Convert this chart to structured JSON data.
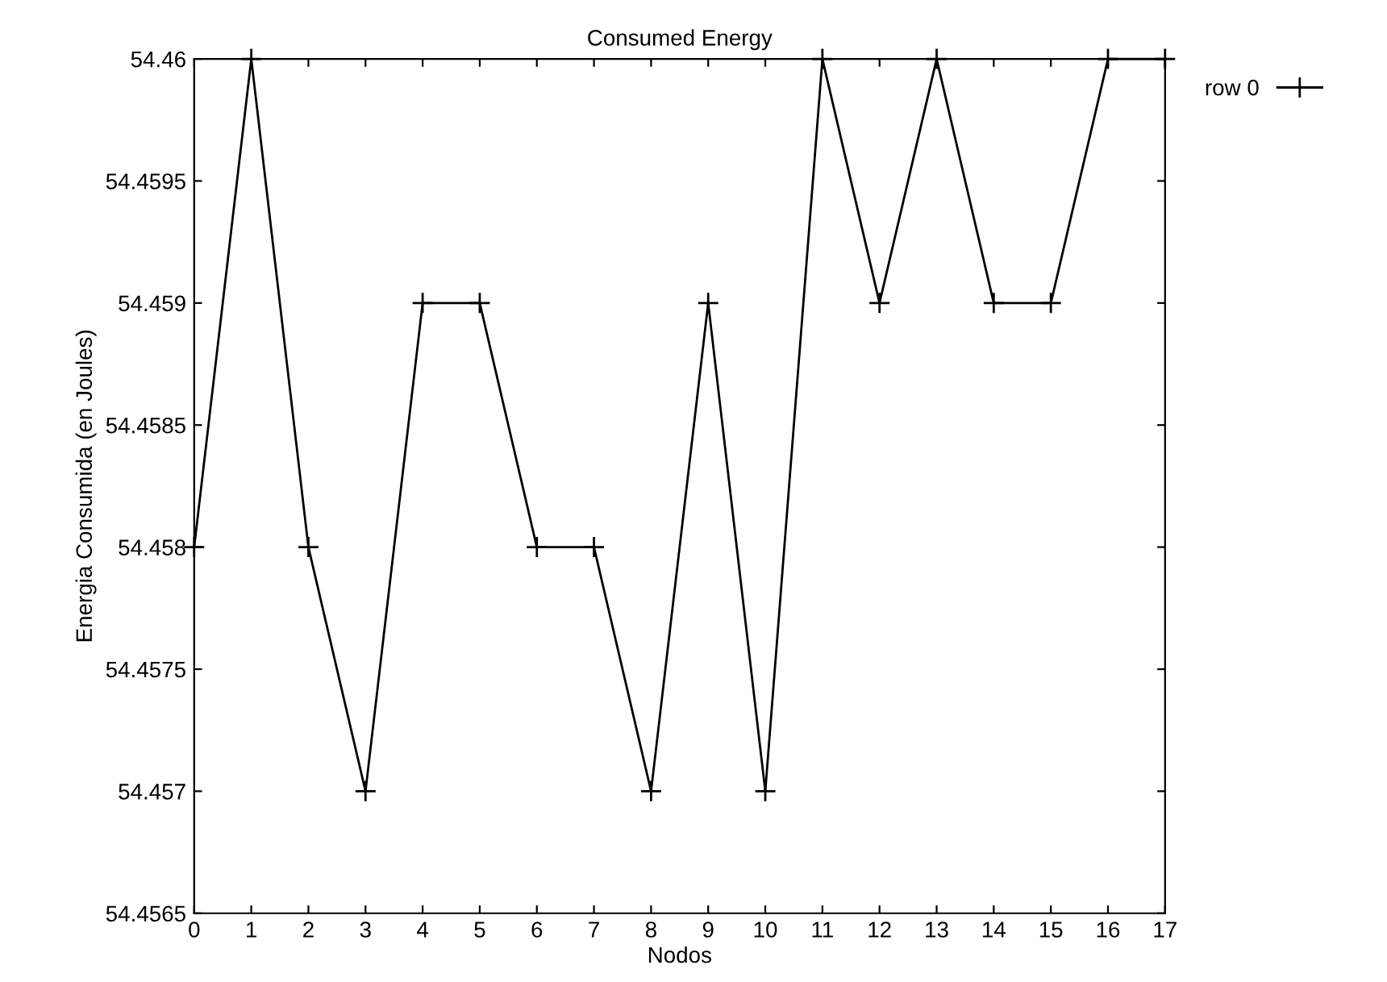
{
  "chart_data": {
    "type": "line",
    "title": "Consumed Energy",
    "xlabel": "Nodos",
    "ylabel": "Energia Consumida (en Joules)",
    "x": [
      0,
      1,
      2,
      3,
      4,
      5,
      6,
      7,
      8,
      9,
      10,
      11,
      12,
      13,
      14,
      15,
      16,
      17
    ],
    "series": [
      {
        "name": "row 0",
        "color": "#000000",
        "values": [
          54.458,
          54.46,
          54.458,
          54.457,
          54.459,
          54.459,
          54.458,
          54.458,
          54.457,
          54.459,
          54.457,
          54.46,
          54.459,
          54.46,
          54.459,
          54.459,
          54.46,
          54.46
        ]
      }
    ],
    "xlim": [
      0,
      17
    ],
    "xticks": [
      0,
      1,
      2,
      3,
      4,
      5,
      6,
      7,
      8,
      9,
      10,
      11,
      12,
      13,
      14,
      15,
      16,
      17
    ],
    "ylim": [
      54.4565,
      54.46
    ],
    "yticks": [
      54.4565,
      54.457,
      54.4575,
      54.458,
      54.4585,
      54.459,
      54.4595,
      54.46
    ],
    "marker": "cross",
    "line_style": "solid",
    "legend": "top right",
    "grid": false
  }
}
